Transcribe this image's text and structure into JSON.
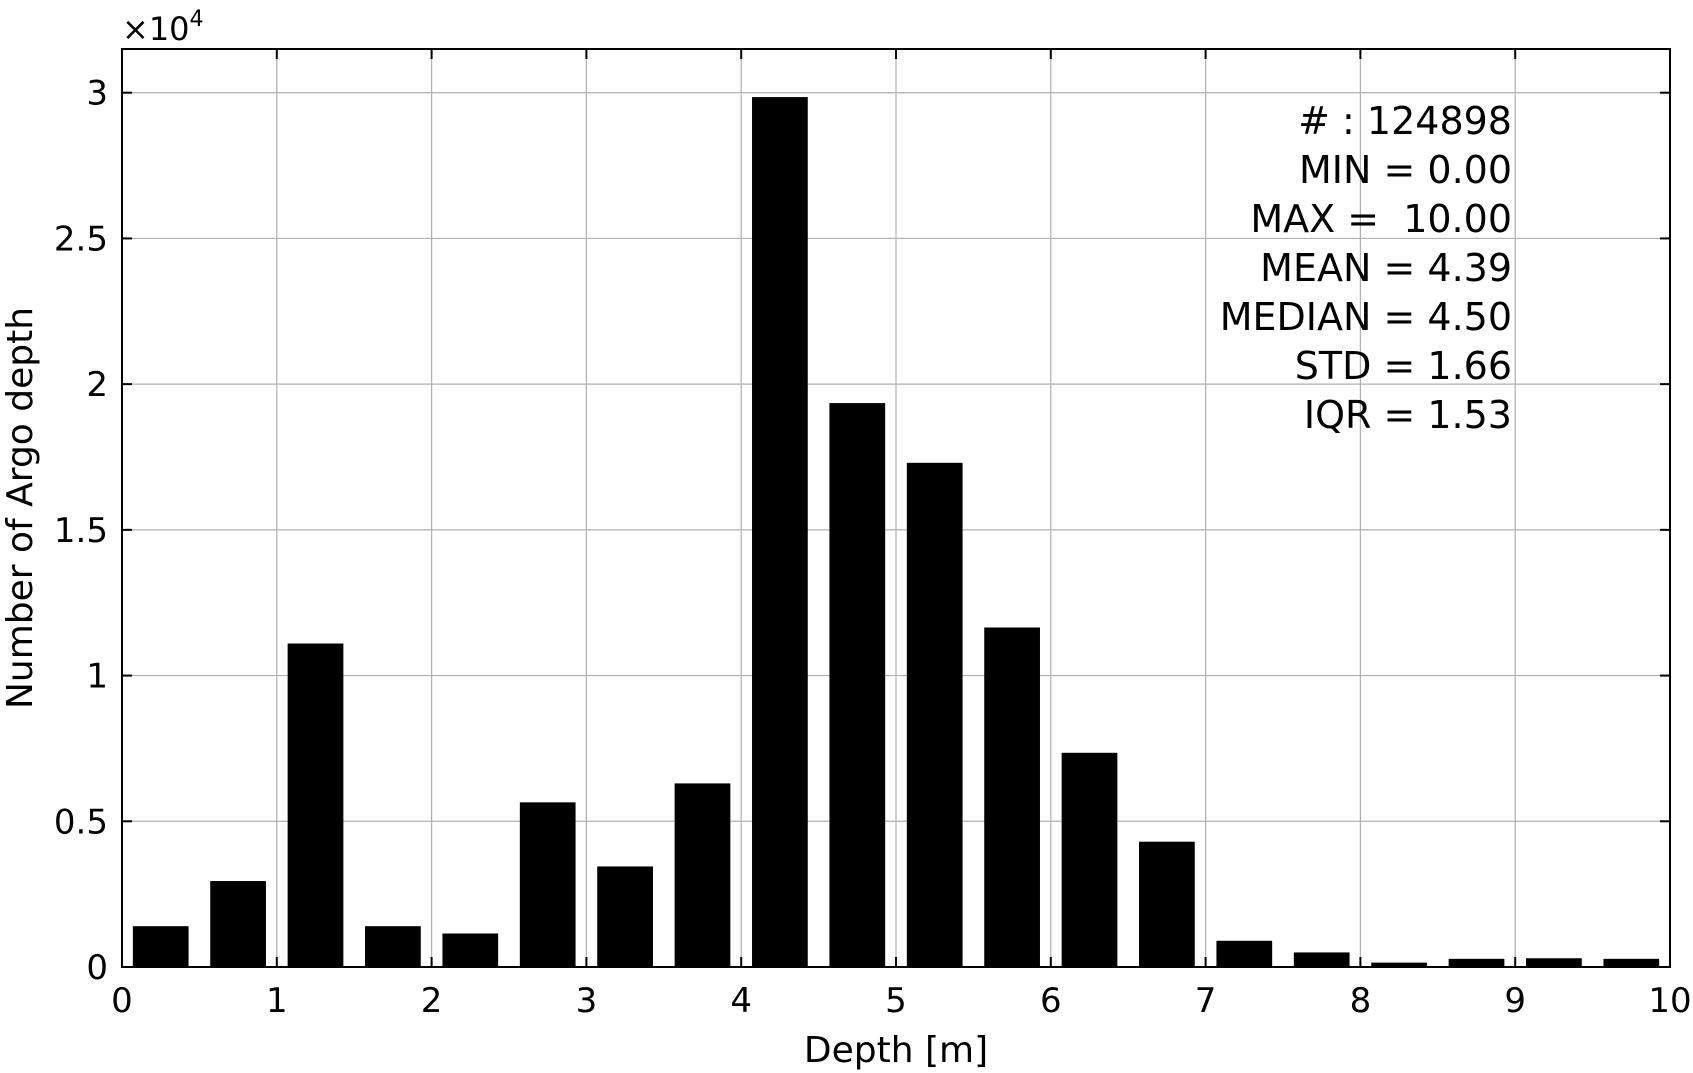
{
  "chart_data": {
    "type": "bar",
    "xlabel": "Depth [m]",
    "ylabel": "Number of Argo depth",
    "xlim": [
      0,
      10
    ],
    "ylim": [
      0,
      31500
    ],
    "x_ticks": [
      "0",
      "1",
      "2",
      "3",
      "4",
      "5",
      "6",
      "7",
      "8",
      "9",
      "10"
    ],
    "y_ticks": [
      "0",
      "0.5",
      "1",
      "1.5",
      "2",
      "2.5",
      "3"
    ],
    "y_tick_values": [
      0,
      5000,
      10000,
      15000,
      20000,
      25000,
      30000
    ],
    "y_multiplier": {
      "base": "×10",
      "exponent": "4"
    },
    "grid": true,
    "bin_width": 0.5,
    "bins": [
      0.25,
      0.75,
      1.25,
      1.75,
      2.25,
      2.75,
      3.25,
      3.75,
      4.25,
      4.75,
      5.25,
      5.75,
      6.25,
      6.75,
      7.25,
      7.75,
      8.25,
      8.75,
      9.25,
      9.75
    ],
    "values": [
      1400,
      2950,
      11100,
      1400,
      1150,
      5650,
      3450,
      6300,
      29850,
      19350,
      17300,
      11650,
      7350,
      4300,
      900,
      500,
      150,
      280,
      300,
      280
    ],
    "bar_color": "#000000",
    "annotation": [
      "# : 124898",
      "MIN = 0.00",
      "MAX =  10.00",
      "MEAN = 4.39",
      "MEDIAN = 4.50",
      "STD = 1.66",
      "IQR = 1.53"
    ]
  }
}
